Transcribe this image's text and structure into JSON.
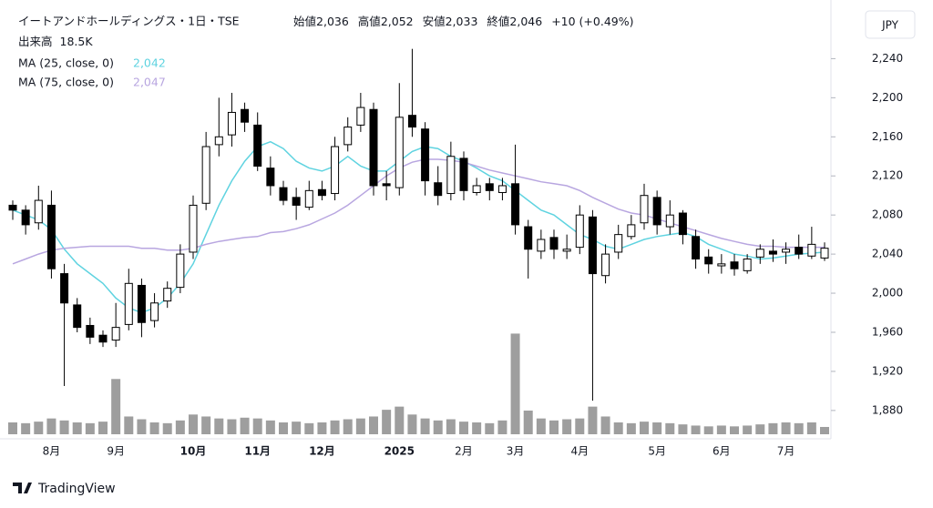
{
  "chart_data": {
    "type": "candlestick",
    "header": {
      "title": "イートアンドホールディングス・1日・TSE",
      "open": {
        "label": "始値",
        "value": "2,036"
      },
      "high": {
        "label": "高値",
        "value": "2,052"
      },
      "low": {
        "label": "安値",
        "value": "2,033"
      },
      "close": {
        "label": "終値",
        "value": "2,046"
      },
      "change": "+10 (+0.49%)",
      "volume_label": "出来高",
      "volume_value": "18.5K"
    },
    "currency_button": "JPY",
    "brand": "TradingView",
    "categories": [
      null,
      null,
      null,
      "8月",
      null,
      null,
      null,
      null,
      "9月",
      null,
      null,
      null,
      null,
      null,
      "10月",
      null,
      null,
      null,
      null,
      "11月",
      null,
      null,
      null,
      null,
      "12月",
      null,
      null,
      null,
      null,
      null,
      "2025",
      null,
      null,
      null,
      null,
      "2月",
      null,
      null,
      null,
      "3月",
      null,
      null,
      null,
      null,
      "4月",
      null,
      null,
      null,
      null,
      null,
      "5月",
      null,
      null,
      null,
      null,
      "6月",
      null,
      null,
      null,
      null,
      "7月",
      null,
      null,
      null
    ],
    "candles": {
      "open": [
        2090,
        2085,
        2072,
        2090,
        2020,
        1988,
        1967,
        1957,
        1952,
        1968,
        2008,
        1972,
        1992,
        2006,
        2042,
        2092,
        2152,
        2162,
        2188,
        2172,
        2128,
        2108,
        2098,
        2088,
        2106,
        2102,
        2152,
        2172,
        2188,
        2112,
        2108,
        2182,
        2168,
        2113,
        2102,
        2138,
        2103,
        2112,
        2103,
        2112,
        2068,
        2043,
        2057,
        2043,
        2047,
        2078,
        2018,
        2042,
        2058,
        2072,
        2098,
        2068,
        2082,
        2058,
        2037,
        2028,
        2032,
        2023,
        2037,
        2043,
        2042,
        2047,
        2038,
        2036
      ],
      "high": [
        2095,
        2090,
        2110,
        2105,
        2030,
        1995,
        1975,
        1962,
        1990,
        2025,
        2015,
        2000,
        2012,
        2050,
        2100,
        2165,
        2200,
        2205,
        2195,
        2185,
        2140,
        2115,
        2108,
        2115,
        2115,
        2160,
        2180,
        2205,
        2195,
        2125,
        2215,
        2250,
        2175,
        2130,
        2155,
        2145,
        2118,
        2118,
        2118,
        2152,
        2075,
        2065,
        2065,
        2060,
        2090,
        2085,
        2050,
        2070,
        2080,
        2112,
        2105,
        2095,
        2085,
        2065,
        2045,
        2040,
        2040,
        2040,
        2050,
        2055,
        2052,
        2060,
        2068,
        2052
      ],
      "low": [
        2075,
        2060,
        2065,
        2015,
        1905,
        1960,
        1948,
        1945,
        1945,
        1962,
        1955,
        1965,
        1985,
        2000,
        2035,
        2085,
        2140,
        2150,
        2165,
        2125,
        2100,
        2090,
        2075,
        2085,
        2095,
        2095,
        2145,
        2165,
        2100,
        2095,
        2100,
        2160,
        2100,
        2090,
        2095,
        2095,
        2100,
        2095,
        2095,
        2060,
        2015,
        2035,
        2035,
        2035,
        2040,
        1890,
        2010,
        2035,
        2055,
        2065,
        2060,
        2060,
        2050,
        2025,
        2020,
        2020,
        2018,
        2020,
        2030,
        2032,
        2030,
        2035,
        2035,
        2033
      ],
      "close": [
        2085,
        2070,
        2095,
        2025,
        1990,
        1965,
        1955,
        1950,
        1965,
        2010,
        1970,
        1990,
        2005,
        2040,
        2090,
        2150,
        2160,
        2185,
        2175,
        2130,
        2110,
        2095,
        2090,
        2105,
        2100,
        2150,
        2170,
        2190,
        2110,
        2110,
        2180,
        2170,
        2115,
        2100,
        2140,
        2105,
        2110,
        2105,
        2110,
        2070,
        2045,
        2055,
        2045,
        2045,
        2080,
        2020,
        2040,
        2060,
        2070,
        2100,
        2070,
        2080,
        2060,
        2035,
        2030,
        2030,
        2025,
        2035,
        2045,
        2040,
        2045,
        2040,
        2050,
        2046
      ],
      "up_color": "#ffffff",
      "down_color": "#000000",
      "border_color": "#000000"
    },
    "volume": {
      "values": [
        30,
        28,
        32,
        40,
        35,
        30,
        28,
        32,
        140,
        45,
        38,
        30,
        28,
        35,
        50,
        45,
        40,
        38,
        42,
        40,
        35,
        30,
        32,
        28,
        30,
        35,
        38,
        40,
        45,
        62,
        70,
        50,
        40,
        35,
        38,
        32,
        30,
        28,
        35,
        255,
        60,
        40,
        35,
        38,
        40,
        70,
        45,
        30,
        28,
        32,
        30,
        28,
        25,
        22,
        20,
        22,
        20,
        22,
        25,
        28,
        30,
        28,
        30,
        18.5
      ],
      "color": "#9e9e9e",
      "vlim": [
        0,
        1100
      ]
    },
    "series": [
      {
        "name": "MA (25, close, 0)",
        "legend_value": "2,042",
        "color": "#5fd3e0",
        "values": [
          2085,
          2080,
          2075,
          2065,
          2045,
          2030,
          2020,
          2010,
          1995,
          1985,
          1980,
          1985,
          1995,
          2010,
          2030,
          2060,
          2090,
          2115,
          2135,
          2150,
          2155,
          2148,
          2135,
          2128,
          2125,
          2130,
          2140,
          2130,
          2125,
          2125,
          2135,
          2145,
          2150,
          2148,
          2140,
          2135,
          2128,
          2120,
          2115,
          2105,
          2095,
          2085,
          2080,
          2070,
          2060,
          2055,
          2048,
          2045,
          2050,
          2055,
          2058,
          2060,
          2062,
          2058,
          2050,
          2045,
          2040,
          2038,
          2035,
          2036,
          2038,
          2040,
          2041,
          2042
        ]
      },
      {
        "name": "MA (75, close, 0)",
        "legend_value": "2,047",
        "color": "#b8a6e0",
        "values": [
          2030,
          2035,
          2040,
          2044,
          2046,
          2047,
          2048,
          2048,
          2048,
          2048,
          2046,
          2046,
          2044,
          2044,
          2046,
          2050,
          2053,
          2055,
          2057,
          2058,
          2062,
          2063,
          2066,
          2070,
          2076,
          2082,
          2090,
          2100,
          2110,
          2120,
          2128,
          2134,
          2137,
          2137,
          2136,
          2134,
          2130,
          2126,
          2123,
          2120,
          2117,
          2114,
          2112,
          2110,
          2105,
          2098,
          2092,
          2086,
          2082,
          2080,
          2076,
          2072,
          2068,
          2064,
          2060,
          2056,
          2053,
          2050,
          2048,
          2048,
          2047,
          2047,
          2047,
          2047
        ]
      }
    ],
    "ylim": [
      1851,
      2300
    ],
    "yticks": [
      {
        "value": 1880,
        "label": "1,880"
      },
      {
        "value": 1920,
        "label": "1,920"
      },
      {
        "value": 1960,
        "label": "1,960"
      },
      {
        "value": 2000,
        "label": "2,000"
      },
      {
        "value": 2040,
        "label": "2,040"
      },
      {
        "value": 2080,
        "label": "2,080"
      },
      {
        "value": 2120,
        "label": "2,120"
      },
      {
        "value": 2160,
        "label": "2,160"
      },
      {
        "value": 2200,
        "label": "2,200"
      },
      {
        "value": 2240,
        "label": "2,240"
      }
    ],
    "grid": false
  }
}
